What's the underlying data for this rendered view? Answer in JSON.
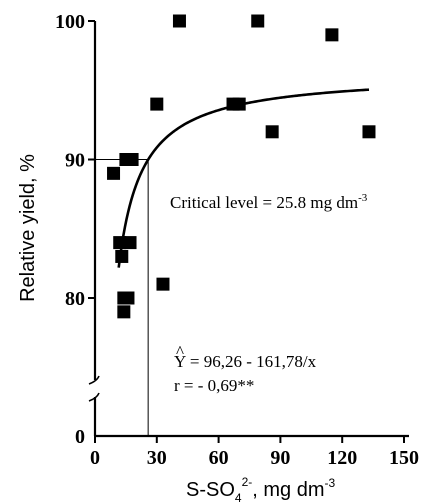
{
  "chart_data": {
    "type": "scatter",
    "xlabel": "S-SO",
    "xlabel_sub": "4",
    "xlabel_sup": "2-",
    "xlabel_tail": ", mg dm",
    "xlabel_tail_sup": "-3",
    "ylabel": "Relative yield, %",
    "xlim": [
      0,
      150
    ],
    "ylim": [
      70,
      100
    ],
    "x_ticks": [
      0,
      30,
      60,
      90,
      120,
      150
    ],
    "x_tick_labels": [
      "0",
      "30",
      "60",
      "90",
      "120",
      "150"
    ],
    "y_ticks": [
      80,
      90,
      100
    ],
    "y_tick_labels": [
      "80",
      "90",
      "100"
    ],
    "y_zero_label": "0",
    "axis_break": true,
    "grid": false,
    "marker": "square",
    "marker_color": "#000000",
    "points": [
      {
        "x": 9,
        "y": 89
      },
      {
        "x": 12,
        "y": 84
      },
      {
        "x": 13,
        "y": 83
      },
      {
        "x": 14,
        "y": 80
      },
      {
        "x": 14,
        "y": 79
      },
      {
        "x": 15,
        "y": 90
      },
      {
        "x": 16,
        "y": 80
      },
      {
        "x": 17,
        "y": 84
      },
      {
        "x": 18,
        "y": 90
      },
      {
        "x": 30,
        "y": 94
      },
      {
        "x": 33,
        "y": 81
      },
      {
        "x": 41,
        "y": 100
      },
      {
        "x": 67,
        "y": 94
      },
      {
        "x": 70,
        "y": 94
      },
      {
        "x": 79,
        "y": 100
      },
      {
        "x": 86,
        "y": 92
      },
      {
        "x": 115,
        "y": 99
      },
      {
        "x": 133,
        "y": 92
      }
    ],
    "fit": {
      "a": 96.26,
      "b": 161.78,
      "x_range": [
        11.5,
        133
      ],
      "equation_text": "Y = 96,26 - 161,78/x",
      "equation_symbol": "^",
      "r_text": "r =  - 0,69**"
    },
    "critical_level": {
      "x": 25.8,
      "y": 90,
      "label": "Critical level = 25.8 mg dm",
      "label_sup": "-3"
    }
  }
}
